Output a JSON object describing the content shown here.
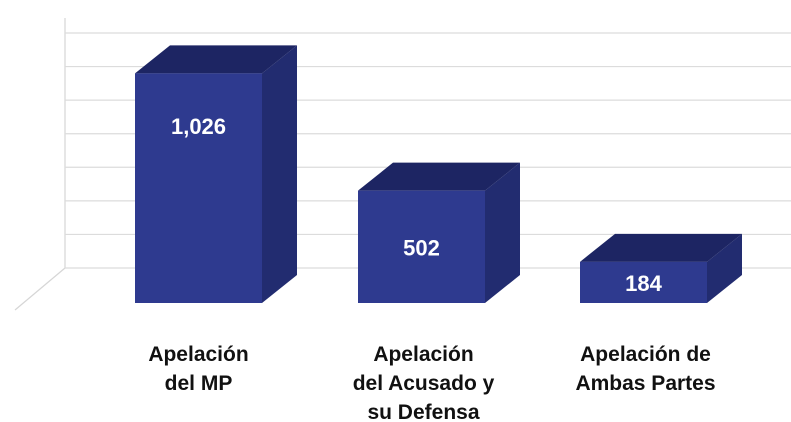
{
  "chart_data": {
    "type": "bar3d",
    "categories": [
      [
        "Apelación",
        "del MP"
      ],
      [
        "Apelación",
        "del Acusado y",
        "su Defensa"
      ],
      [
        "Apelación de",
        "Ambas Partes"
      ]
    ],
    "values": [
      1026,
      502,
      184
    ],
    "value_labels": [
      "1,026",
      "502",
      "184"
    ],
    "color": "#2e3a8f",
    "ylim": [
      0,
      1050
    ],
    "yticks": [
      0,
      150,
      300,
      450,
      600,
      750,
      900,
      1050
    ],
    "grid": true
  }
}
